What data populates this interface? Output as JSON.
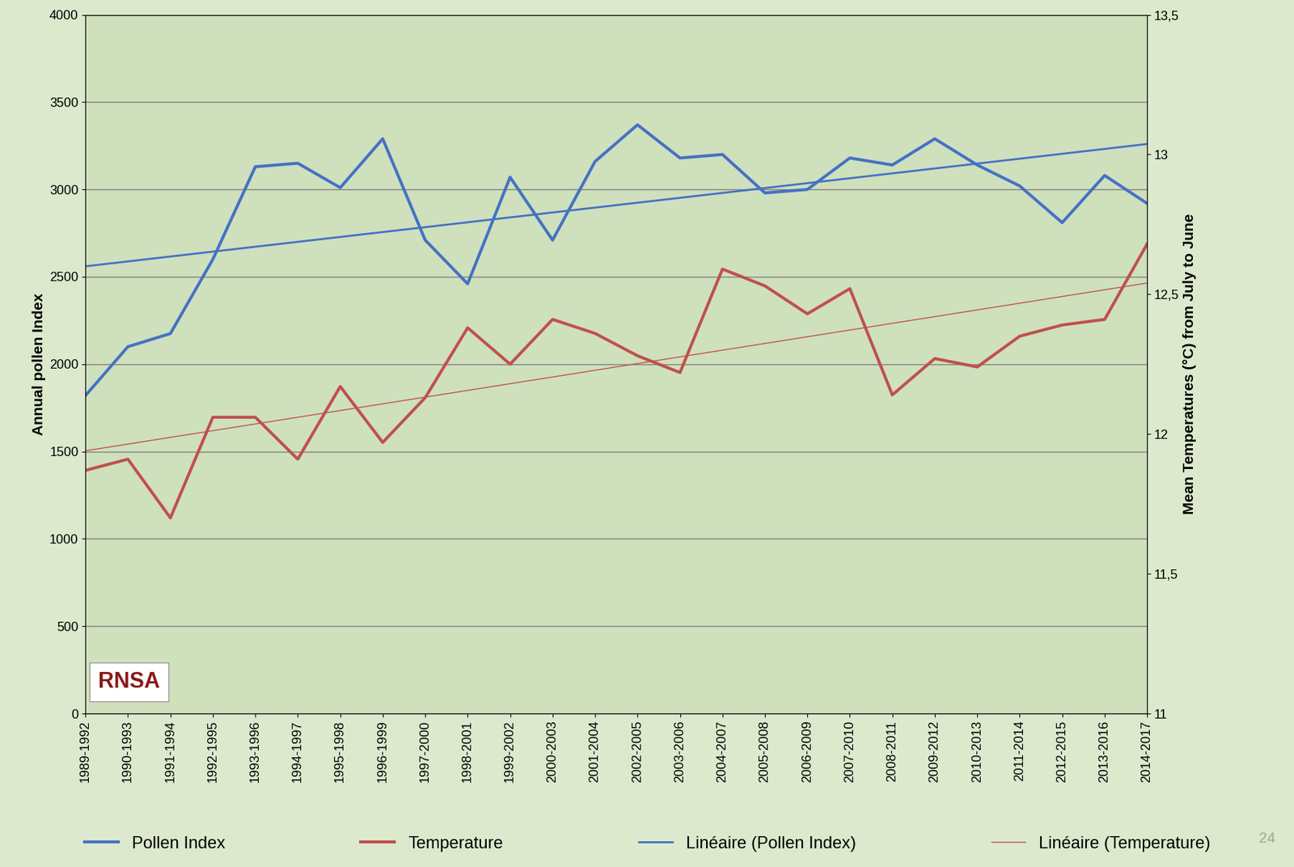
{
  "chart_data": {
    "type": "line",
    "categories": [
      "1989-1992",
      "1990-1993",
      "1991-1994",
      "1992-1995",
      "1993-1996",
      "1994-1997",
      "1995-1998",
      "1996-1999",
      "1997-2000",
      "1998-2001",
      "1999-2002",
      "2000-2003",
      "2001-2004",
      "2002-2005",
      "2003-2006",
      "2004-2007",
      "2005-2008",
      "2006-2009",
      "2007-2010",
      "2008-2011",
      "2009-2012",
      "2010-2013",
      "2011-2014",
      "2012-2015",
      "2013-2016",
      "2014-2017"
    ],
    "y_label": "Annual pollen Index",
    "y2_label": "Mean Temperatures (°C) from July to June",
    "ylim": [
      0,
      4000
    ],
    "yticks": [
      0,
      500,
      1000,
      1500,
      2000,
      2500,
      3000,
      3500,
      4000
    ],
    "y2lim": [
      11,
      13.5
    ],
    "y2ticks": [
      {
        "value": 11,
        "label": "11"
      },
      {
        "value": 11.5,
        "label": "11,5"
      },
      {
        "value": 12,
        "label": "12"
      },
      {
        "value": 12.5,
        "label": "12,5"
      },
      {
        "value": 13,
        "label": "13"
      },
      {
        "value": 13.5,
        "label": "13,5"
      }
    ],
    "grid": true,
    "legend": "bottom",
    "annotations": [
      "RNSA",
      "24"
    ],
    "series": [
      {
        "name": "Pollen Index",
        "color": "#4472c4",
        "type": "line",
        "values": [
          1820,
          2100,
          2175,
          2600,
          3130,
          3150,
          3010,
          3290,
          2710,
          2460,
          3070,
          2710,
          3160,
          3370,
          3180,
          3200,
          2980,
          3000,
          3180,
          3140,
          3290,
          3140,
          3020,
          2810,
          3080,
          2920
        ]
      },
      {
        "name": "Temperature",
        "color": "#c0504d",
        "type": "line",
        "axis": "y2",
        "values": [
          11.87,
          11.91,
          11.7,
          12.06,
          12.06,
          11.91,
          12.17,
          11.97,
          12.13,
          12.38,
          12.25,
          12.41,
          12.36,
          12.28,
          12.22,
          12.59,
          12.53,
          12.43,
          12.52,
          12.14,
          12.27,
          12.24,
          12.35,
          12.39,
          12.41,
          12.68
        ]
      },
      {
        "name": "Linéaire (Pollen Index)",
        "color": "#4472c4",
        "type": "trend",
        "values": [
          2560,
          2588,
          2616,
          2644,
          2672,
          2700,
          2728,
          2756,
          2784,
          2812,
          2840,
          2868,
          2896,
          2924,
          2952,
          2980,
          3008,
          3036,
          3064,
          3092,
          3120,
          3148,
          3176,
          3204,
          3232,
          3260
        ]
      },
      {
        "name": "Linéaire (Temperature)",
        "color": "#c0504d",
        "type": "trend",
        "axis": "y2",
        "values": [
          11.94,
          11.964,
          11.988,
          12.012,
          12.036,
          12.06,
          12.084,
          12.108,
          12.132,
          12.156,
          12.18,
          12.204,
          12.228,
          12.252,
          12.276,
          12.3,
          12.324,
          12.348,
          12.372,
          12.396,
          12.42,
          12.444,
          12.468,
          12.492,
          12.516,
          12.54
        ]
      }
    ]
  }
}
